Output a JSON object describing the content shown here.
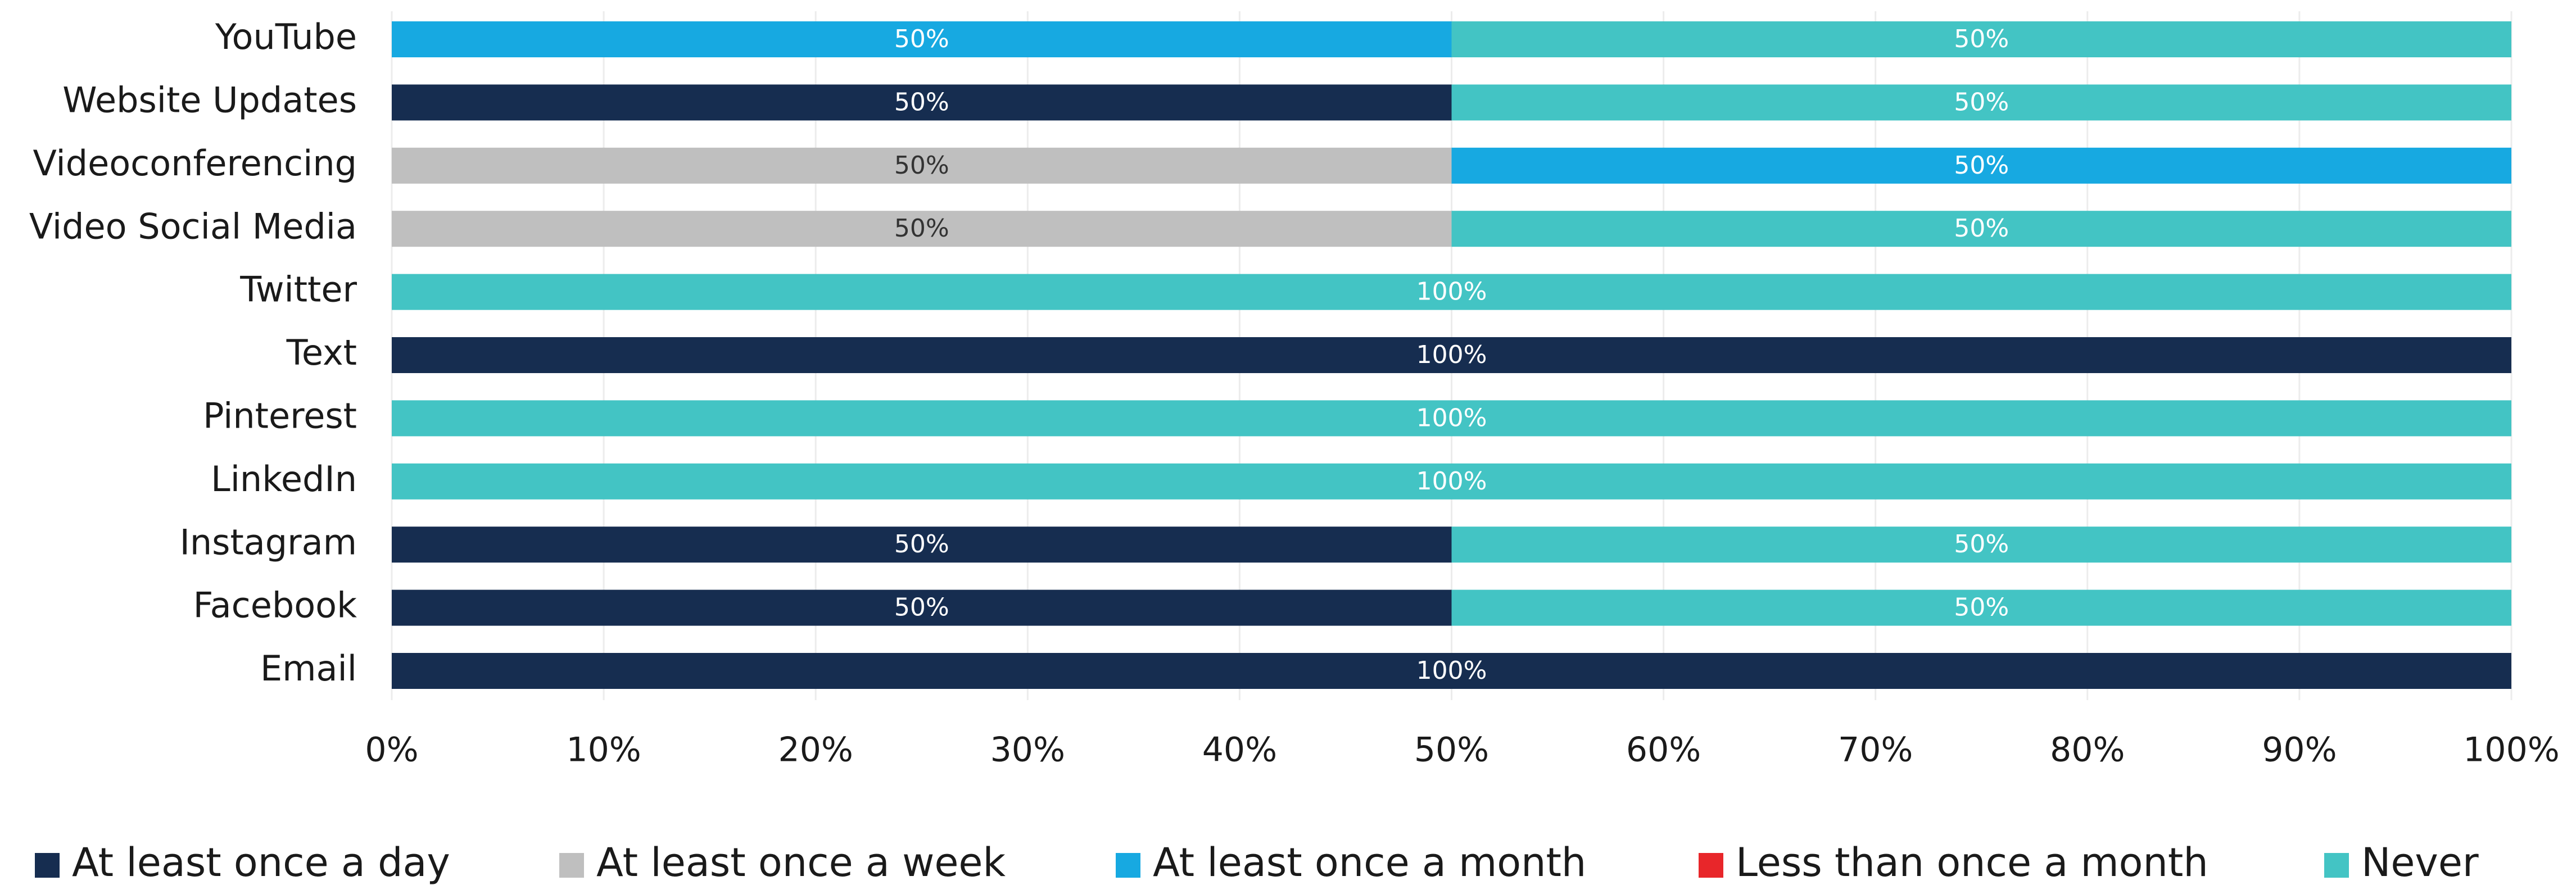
{
  "chart_data": {
    "type": "stacked-barh",
    "categories": [
      "YouTube",
      "Website Updates",
      "Videoconferencing",
      "Video Social Media",
      "Twitter",
      "Text",
      "Pinterest",
      "LinkedIn",
      "Instagram",
      "Facebook",
      "Email"
    ],
    "series": [
      {
        "name": "At least once a day",
        "color": "#162d50",
        "values": [
          0,
          50,
          0,
          0,
          0,
          100,
          0,
          0,
          50,
          50,
          100
        ],
        "value_labels": [
          null,
          "50%",
          null,
          null,
          null,
          "100%",
          null,
          null,
          "50%",
          "50%",
          "100%"
        ]
      },
      {
        "name": "At least once a week",
        "color": "#bfbfbf",
        "values": [
          0,
          0,
          50,
          50,
          0,
          0,
          0,
          0,
          0,
          0,
          0
        ],
        "value_labels": [
          null,
          null,
          "50%",
          "50%",
          null,
          null,
          null,
          null,
          null,
          null,
          null
        ]
      },
      {
        "name": "At least once a month",
        "color": "#17a9e1",
        "values": [
          50,
          0,
          50,
          0,
          0,
          0,
          0,
          0,
          0,
          0,
          0
        ],
        "value_labels": [
          "50%",
          null,
          "50%",
          null,
          null,
          null,
          null,
          null,
          null,
          null,
          null
        ]
      },
      {
        "name": "Less than once a month",
        "color": "#e8262a",
        "values": [
          0,
          0,
          0,
          0,
          0,
          0,
          0,
          0,
          0,
          0,
          0
        ],
        "value_labels": [
          null,
          null,
          null,
          null,
          null,
          null,
          null,
          null,
          null,
          null,
          null
        ]
      },
      {
        "name": "Never",
        "color": "#43c4c4",
        "values": [
          50,
          50,
          0,
          50,
          100,
          0,
          100,
          100,
          50,
          50,
          0
        ],
        "value_labels": [
          "50%",
          "50%",
          null,
          "50%",
          "100%",
          null,
          "100%",
          "100%",
          "50%",
          "50%",
          null
        ]
      }
    ],
    "xlim": [
      0,
      100
    ],
    "xticks": [
      {
        "value": 0,
        "label": "0%"
      },
      {
        "value": 10,
        "label": "10%"
      },
      {
        "value": 20,
        "label": "20%"
      },
      {
        "value": 30,
        "label": "30%"
      },
      {
        "value": 40,
        "label": "40%"
      },
      {
        "value": 50,
        "label": "50%"
      },
      {
        "value": 60,
        "label": "60%"
      },
      {
        "value": 70,
        "label": "70%"
      },
      {
        "value": 80,
        "label": "80%"
      },
      {
        "value": 90,
        "label": "90%"
      },
      {
        "value": 100,
        "label": "100%"
      }
    ],
    "grid": true,
    "legend": "bottom"
  }
}
